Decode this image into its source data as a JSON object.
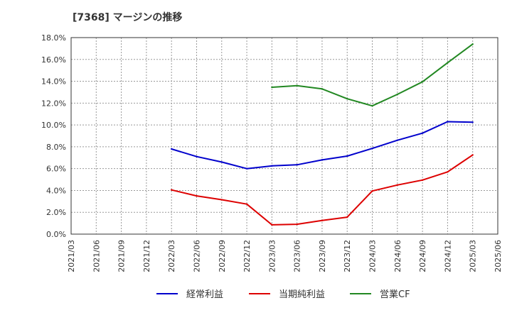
{
  "chart_data": {
    "type": "line",
    "title": "[7368]  マージンの推移",
    "xlabel": "",
    "ylabel": "",
    "ylim": [
      0,
      18
    ],
    "y_ticks": [
      "0.0%",
      "2.0%",
      "4.0%",
      "6.0%",
      "8.0%",
      "10.0%",
      "12.0%",
      "14.0%",
      "16.0%",
      "18.0%"
    ],
    "categories": [
      "2021/03",
      "2021/06",
      "2021/09",
      "2021/12",
      "2022/03",
      "2022/06",
      "2022/09",
      "2022/12",
      "2023/03",
      "2023/06",
      "2023/09",
      "2023/12",
      "2024/03",
      "2024/06",
      "2024/09",
      "2024/12",
      "2025/03",
      "2025/06"
    ],
    "grid": true,
    "legend_position": "bottom",
    "series": [
      {
        "name": "経常利益",
        "color": "#0000cc",
        "values": [
          null,
          null,
          null,
          null,
          7.8,
          7.1,
          6.6,
          6.0,
          6.25,
          6.35,
          6.8,
          7.15,
          7.85,
          8.6,
          9.25,
          10.3,
          10.25,
          null
        ]
      },
      {
        "name": "当期純利益",
        "color": "#dd0000",
        "values": [
          null,
          null,
          null,
          null,
          4.05,
          3.5,
          3.15,
          2.75,
          0.85,
          0.9,
          1.25,
          1.55,
          3.95,
          4.5,
          4.95,
          5.7,
          7.25,
          null
        ]
      },
      {
        "name": "営業CF",
        "color": "#228822",
        "values": [
          null,
          null,
          null,
          null,
          null,
          null,
          null,
          null,
          13.45,
          13.6,
          13.3,
          12.4,
          11.75,
          12.8,
          13.95,
          15.7,
          17.4,
          null
        ]
      }
    ]
  }
}
